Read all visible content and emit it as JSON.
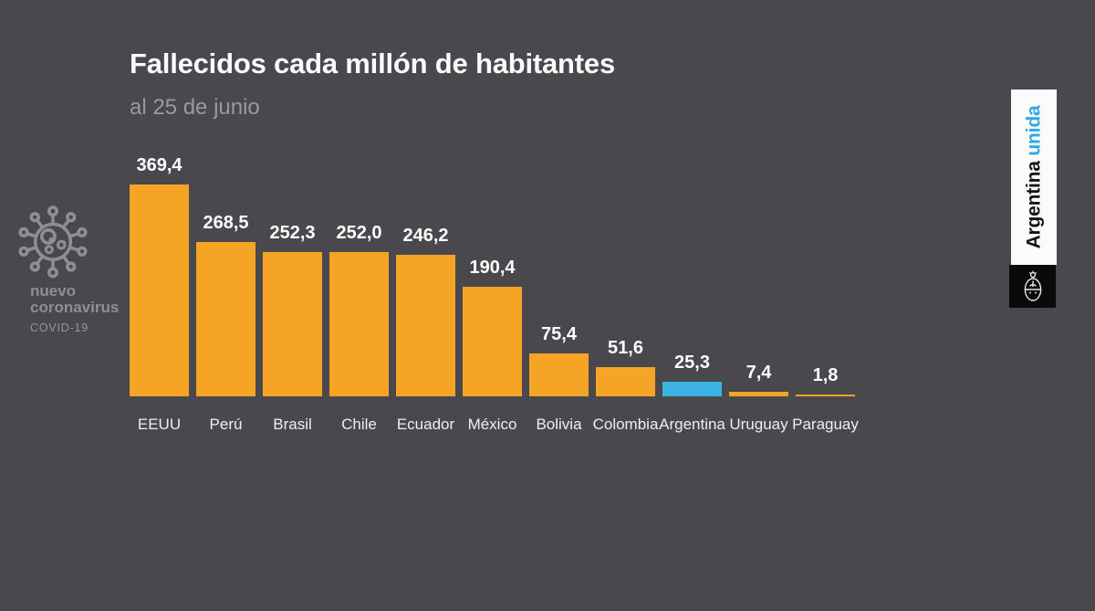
{
  "page": {
    "background": "#48484D"
  },
  "header": {
    "title": "Fallecidos cada millón de habitantes",
    "subtitle": "al 25 de junio"
  },
  "logo": {
    "icon": "coronavirus-icon",
    "line1": "nuevo",
    "line2": "coronavirus",
    "line3": "COVID-19",
    "color": "#908E95"
  },
  "chart_data": {
    "type": "bar",
    "title": "Fallecidos cada millón de habitantes",
    "subtitle": "al 25 de junio",
    "categories": [
      "EEUU",
      "Perú",
      "Brasil",
      "Chile",
      "Ecuador",
      "México",
      "Bolivia",
      "Colombia",
      "Argentina",
      "Uruguay",
      "Paraguay"
    ],
    "values": [
      369.4,
      268.5,
      252.3,
      252.0,
      246.2,
      190.4,
      75.4,
      51.6,
      25.3,
      7.4,
      1.8
    ],
    "value_labels": [
      "369,4",
      "268,5",
      "252,3",
      "252,0",
      "246,2",
      "190,4",
      "75,4",
      "51,6",
      "25,3",
      "7,4",
      "1,8"
    ],
    "highlight_index": 8,
    "bar_color": "#F6A426",
    "highlight_color": "#3DB3E3",
    "xlabel": "",
    "ylabel": "",
    "ylim": [
      0,
      380
    ],
    "grid": false,
    "legend": null,
    "value_label_position": "above-bars",
    "orientation": "vertical"
  },
  "brand": {
    "name_black": "Argentina",
    "name_blue": "unida",
    "blue": "#2FA9E0",
    "emblem_icon": "argentina-coat-of-arms-icon"
  }
}
